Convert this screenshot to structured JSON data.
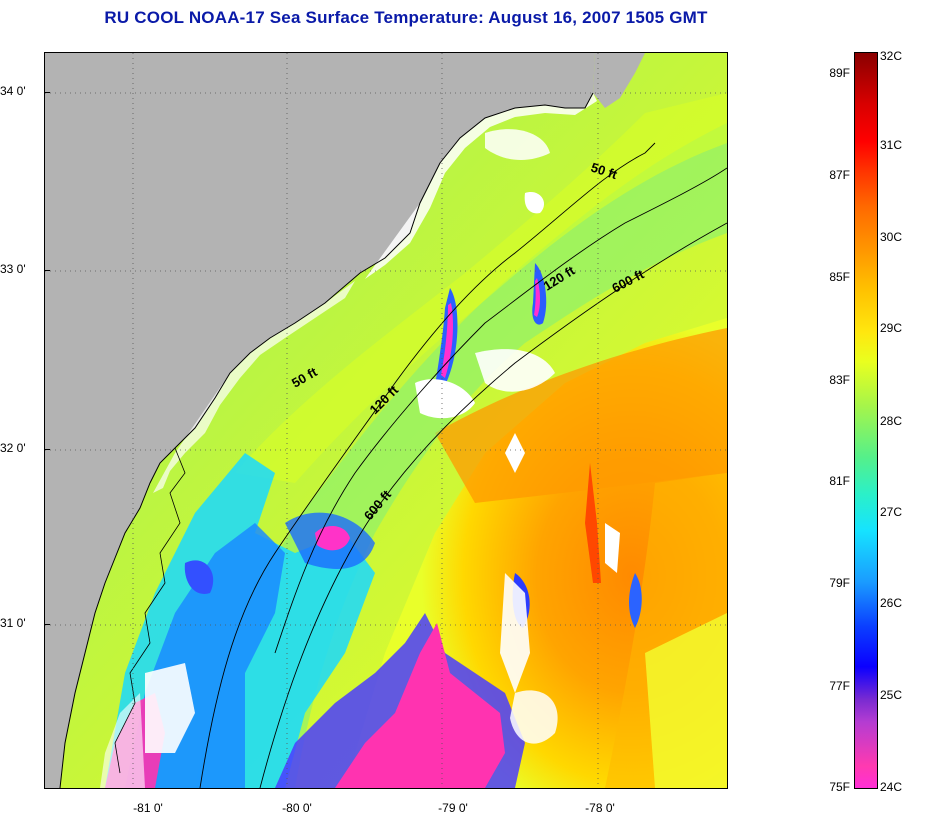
{
  "title": "RU COOL  NOAA-17  Sea Surface Temperature:  August 16, 2007 1505 GMT",
  "map": {
    "lat_ticks": [
      "34 0'",
      "33 0'",
      "32 0'",
      "31 0'"
    ],
    "lon_ticks": [
      "-81 0'",
      "-80 0'",
      "-79 0'",
      "-78 0'"
    ],
    "contour_labels": [
      "50 ft",
      "120 ft",
      "600 ft",
      "50 ft",
      "120 ft",
      "600 ft"
    ],
    "colors": {
      "land": "#b3b3b3",
      "cloud": "#ffffff",
      "coast_line": "#000000"
    }
  },
  "colorbar": {
    "celsius": [
      "32C",
      "31C",
      "30C",
      "29C",
      "28C",
      "27C",
      "26C",
      "25C",
      "24C"
    ],
    "fahrenheit": [
      "89F",
      "87F",
      "85F",
      "83F",
      "81F",
      "79F",
      "77F",
      "75F"
    ]
  }
}
